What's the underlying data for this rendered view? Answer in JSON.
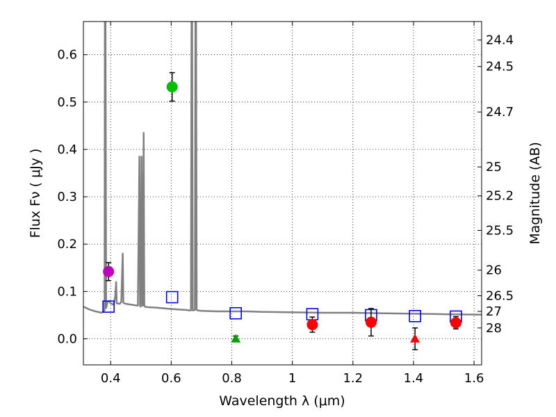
{
  "chart_data": {
    "type": "scatter",
    "xlabel": "Wavelength  λ (μm)",
    "ylabel": "Flux  Fν  ( μJy )",
    "y2label": "Magnitude (AB)",
    "xlim": [
      0.31,
      1.625
    ],
    "ylim": [
      -0.055,
      0.67
    ],
    "grid": true,
    "x_ticks": [
      0.4,
      0.6,
      0.8,
      1.0,
      1.2,
      1.4,
      1.6
    ],
    "x_tick_labels": [
      "0.4",
      "0.6",
      "0.8",
      "1",
      "1.2",
      "1.4",
      "1.6"
    ],
    "y_ticks": [
      0.0,
      0.1,
      0.2,
      0.3,
      0.4,
      0.5,
      0.6
    ],
    "y_tick_labels": [
      "0.0",
      "0.1",
      "0.2",
      "0.3",
      "0.4",
      "0.5",
      "0.6"
    ],
    "y2_ticks": [
      {
        "label": "24.4",
        "flux": 0.631
      },
      {
        "label": "24.5",
        "flux": 0.575
      },
      {
        "label": "24.7",
        "flux": 0.479
      },
      {
        "label": "25",
        "flux": 0.363
      },
      {
        "label": "25.2",
        "flux": 0.302
      },
      {
        "label": "25.5",
        "flux": 0.229
      },
      {
        "label": "26",
        "flux": 0.145
      },
      {
        "label": "26.5",
        "flux": 0.091
      },
      {
        "label": "27",
        "flux": 0.058
      },
      {
        "label": "28",
        "flux": 0.023
      }
    ],
    "sed_model": {
      "name": "model spectrum",
      "color": "#808080",
      "x": [
        0.31,
        0.33,
        0.35,
        0.37,
        0.38,
        0.381,
        0.383,
        0.385,
        0.39,
        0.395,
        0.4,
        0.41,
        0.415,
        0.418,
        0.42,
        0.43,
        0.435,
        0.44,
        0.442,
        0.445,
        0.45,
        0.47,
        0.49,
        0.495,
        0.497,
        0.499,
        0.502,
        0.505,
        0.507,
        0.509,
        0.511,
        0.513,
        0.52,
        0.55,
        0.6,
        0.65,
        0.66,
        0.665,
        0.667,
        0.669,
        0.671,
        0.674,
        0.678,
        0.68,
        0.682,
        0.684,
        0.687,
        0.7,
        0.75,
        0.8,
        0.85,
        0.9,
        1.0,
        1.1,
        1.2,
        1.3,
        1.4,
        1.5,
        1.625
      ],
      "y": [
        0.068,
        0.062,
        0.058,
        0.055,
        0.06,
        0.7,
        0.7,
        0.065,
        0.078,
        0.08,
        0.075,
        0.072,
        0.09,
        0.12,
        0.075,
        0.074,
        0.078,
        0.18,
        0.076,
        0.075,
        0.074,
        0.072,
        0.07,
        0.385,
        0.07,
        0.068,
        0.385,
        0.07,
        0.07,
        0.435,
        0.07,
        0.068,
        0.067,
        0.066,
        0.063,
        0.061,
        0.06,
        0.06,
        0.7,
        0.7,
        0.06,
        0.06,
        0.061,
        0.7,
        0.7,
        0.061,
        0.06,
        0.059,
        0.058,
        0.058,
        0.058,
        0.057,
        0.056,
        0.055,
        0.055,
        0.054,
        0.053,
        0.052,
        0.051
      ]
    },
    "observed": [
      {
        "x": 0.393,
        "y": 0.142,
        "err": 0.019,
        "color": "#bf00bf",
        "marker": "circle"
      },
      {
        "x": 0.603,
        "y": 0.532,
        "err": 0.03,
        "color": "#00c000",
        "marker": "circle"
      },
      {
        "x": 0.813,
        "y": 0.0,
        "err": 0.006,
        "color": "#00a000",
        "marker": "triangle"
      },
      {
        "x": 1.066,
        "y": 0.03,
        "err": 0.016,
        "color": "#ff0000",
        "marker": "circle"
      },
      {
        "x": 1.26,
        "y": 0.035,
        "err": 0.029,
        "color": "#ff0000",
        "marker": "circle"
      },
      {
        "x": 1.405,
        "y": 0.0,
        "err": 0.023,
        "color": "#ff0000",
        "marker": "triangle"
      },
      {
        "x": 1.54,
        "y": 0.034,
        "err": 0.013,
        "color": "#ff0000",
        "marker": "circle"
      }
    ],
    "model_photometry": {
      "color": "#0000ff",
      "x": [
        0.393,
        0.603,
        0.813,
        1.066,
        1.26,
        1.405,
        1.54
      ],
      "y": [
        0.068,
        0.088,
        0.054,
        0.052,
        0.05,
        0.048,
        0.047
      ]
    }
  }
}
